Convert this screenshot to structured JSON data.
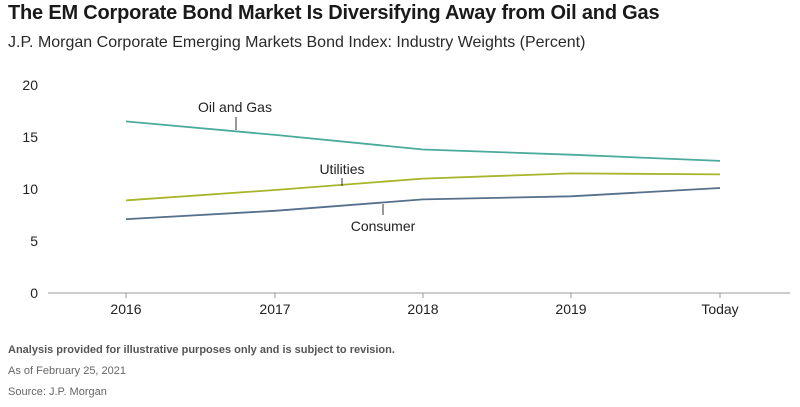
{
  "header": {
    "title": "The EM Corporate Bond Market Is Diversifying Away from Oil and Gas",
    "subtitle": "J.P. Morgan Corporate Emerging Markets Bond Index: Industry Weights (Percent)"
  },
  "notes": {
    "disclaimer": "Analysis provided for illustrative purposes only and is subject to revision.",
    "as_of": "As of February 25, 2021",
    "source": "Source: J.P. Morgan"
  },
  "colors": {
    "oil_and_gas": "#4aab9c",
    "utilities": "#a8b52a",
    "consumer": "#56708c",
    "axis": "#999999",
    "leader": "#333333"
  },
  "chart_data": {
    "type": "line",
    "title": "J.P. Morgan Corporate Emerging Markets Bond Index: Industry Weights (Percent)",
    "xlabel": "",
    "ylabel": "",
    "categories": [
      "2016",
      "2017",
      "2018",
      "2019",
      "Today"
    ],
    "ylim": [
      0,
      20
    ],
    "yticks": [
      0,
      5,
      10,
      15,
      20
    ],
    "grid": false,
    "legend": "inline labels",
    "series": [
      {
        "name": "Oil and Gas",
        "key": "oil_and_gas",
        "values": [
          16.5,
          15.2,
          13.8,
          13.3,
          12.7
        ]
      },
      {
        "name": "Utilities",
        "key": "utilities",
        "values": [
          8.9,
          9.9,
          11.0,
          11.5,
          11.4
        ]
      },
      {
        "name": "Consumer",
        "key": "consumer",
        "values": [
          7.1,
          7.9,
          9.0,
          9.3,
          10.1
        ]
      }
    ]
  }
}
